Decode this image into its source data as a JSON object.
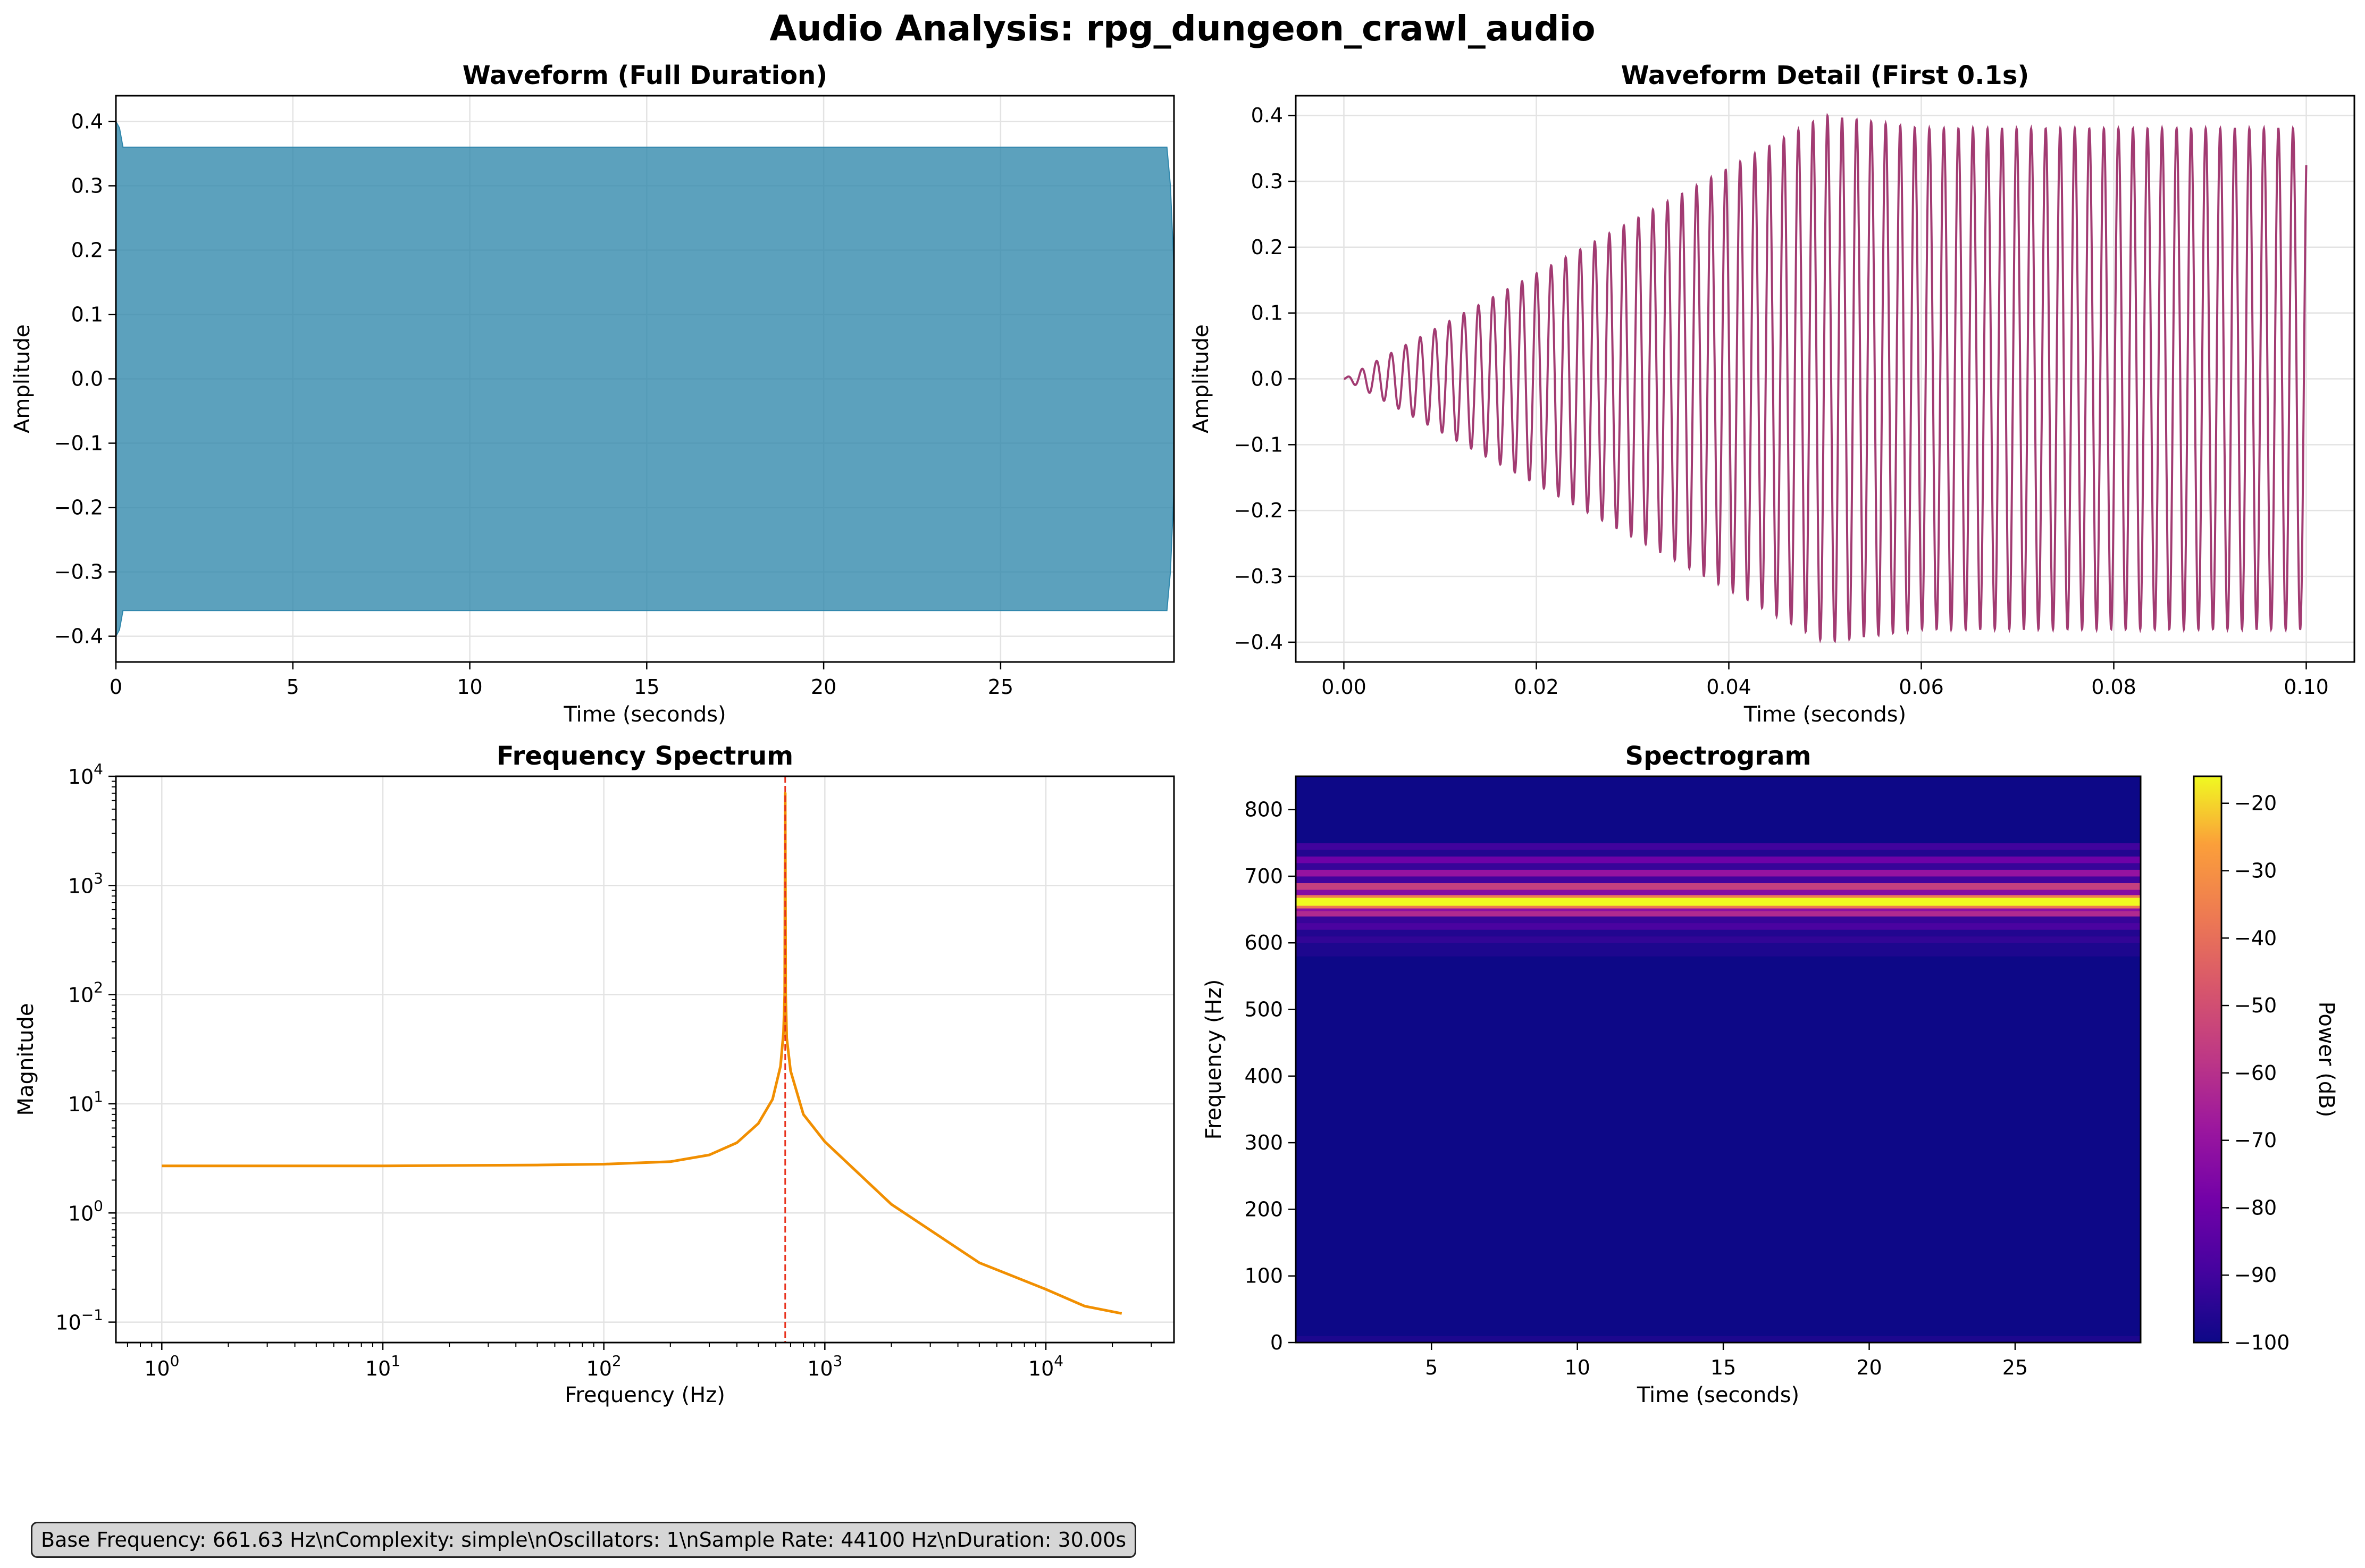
{
  "figure": {
    "title": "Audio Analysis: rpg_dungeon_crawl_audio",
    "info_text": "Base Frequency: 661.63 Hz\\nComplexity: simple\\nOscillators: 1\\nSample Rate: 44100 Hz\\nDuration: 30.00s"
  },
  "chart_data": [
    {
      "type": "area",
      "title": "Waveform (Full Duration)",
      "xlabel": "Time (seconds)",
      "ylabel": "Amplitude",
      "xlim": [
        0,
        29.9
      ],
      "ylim": [
        -0.44,
        0.44
      ],
      "xticks": [
        0,
        5,
        10,
        15,
        20,
        25
      ],
      "xtick_labels": [
        "0",
        "5",
        "10",
        "15",
        "20",
        "25"
      ],
      "yticks": [
        -0.4,
        -0.3,
        -0.2,
        -0.1,
        0.0,
        0.1,
        0.2,
        0.3,
        0.4
      ],
      "ytick_labels": [
        "−0.4",
        "−0.3",
        "−0.2",
        "−0.1",
        "0.0",
        "0.1",
        "0.2",
        "0.3",
        "0.4"
      ],
      "envelope": [
        [
          0,
          0.4
        ],
        [
          0.1,
          0.39
        ],
        [
          0.2,
          0.36
        ],
        [
          29.7,
          0.36
        ],
        [
          29.8,
          0.3
        ],
        [
          29.9,
          0.17
        ]
      ],
      "color": "#2e86ab",
      "grid": true
    },
    {
      "type": "line",
      "title": "Waveform Detail (First 0.1s)",
      "xlabel": "Time (seconds)",
      "ylabel": "Amplitude",
      "xlim": [
        -0.005,
        0.105
      ],
      "ylim": [
        -0.43,
        0.43
      ],
      "xticks": [
        0,
        0.02,
        0.04,
        0.06,
        0.08,
        0.1
      ],
      "xtick_labels": [
        "0.00",
        "0.02",
        "0.04",
        "0.06",
        "0.08",
        "0.10"
      ],
      "yticks": [
        -0.4,
        -0.3,
        -0.2,
        -0.1,
        0.0,
        0.1,
        0.2,
        0.3,
        0.4
      ],
      "ytick_labels": [
        "−0.4",
        "−0.3",
        "−0.2",
        "−0.1",
        "0.0",
        "0.1",
        "0.2",
        "0.3",
        "0.4"
      ],
      "signal": {
        "frequency_hz": 661.63,
        "attack_end_s": 0.05,
        "peak_amplitude": 0.4,
        "sustain_amplitude": 0.38,
        "decay_end_s": 0.06,
        "duration_s": 0.1
      },
      "color": "#a23b72",
      "grid": true
    },
    {
      "type": "line",
      "title": "Frequency Spectrum",
      "xlabel": "Frequency (Hz)",
      "ylabel": "Magnitude",
      "xscale": "log",
      "yscale": "log",
      "xlim": [
        0.62,
        38000
      ],
      "ylim": [
        0.065,
        10000
      ],
      "xticks": [
        1,
        10,
        100,
        1000,
        10000
      ],
      "xtick_labels": [
        [
          "10",
          "0"
        ],
        [
          "10",
          "1"
        ],
        [
          "10",
          "2"
        ],
        [
          "10",
          "3"
        ],
        [
          "10",
          "4"
        ]
      ],
      "yticks": [
        0.1,
        1,
        10,
        100,
        1000,
        10000
      ],
      "ytick_labels": [
        [
          "10",
          "−1"
        ],
        [
          "10",
          "0"
        ],
        [
          "10",
          "1"
        ],
        [
          "10",
          "2"
        ],
        [
          "10",
          "3"
        ],
        [
          "10",
          "4"
        ]
      ],
      "series_points": [
        [
          1,
          2.7
        ],
        [
          10,
          2.7
        ],
        [
          50,
          2.75
        ],
        [
          100,
          2.8
        ],
        [
          200,
          2.95
        ],
        [
          300,
          3.4
        ],
        [
          400,
          4.4
        ],
        [
          500,
          6.6
        ],
        [
          580,
          11
        ],
        [
          630,
          22
        ],
        [
          650,
          45
        ],
        [
          658,
          100
        ],
        [
          661.63,
          7000
        ],
        [
          665,
          100
        ],
        [
          672,
          40
        ],
        [
          700,
          20
        ],
        [
          800,
          8
        ],
        [
          1000,
          4.5
        ],
        [
          2000,
          1.2
        ],
        [
          5000,
          0.35
        ],
        [
          10000,
          0.2
        ],
        [
          15000,
          0.14
        ],
        [
          22050,
          0.12
        ]
      ],
      "peak_frequency_hz": 661.63,
      "line_color": "#f18f01",
      "marker_color": "#e8321e",
      "grid": true
    },
    {
      "type": "heatmap",
      "title": "Spectrogram",
      "xlabel": "Time (seconds)",
      "ylabel": "Frequency (Hz)",
      "xlim": [
        0.35,
        29.3
      ],
      "ylim": [
        0,
        850
      ],
      "xticks": [
        5,
        10,
        15,
        20,
        25
      ],
      "xtick_labels": [
        "5",
        "10",
        "15",
        "20",
        "25"
      ],
      "yticks": [
        0,
        100,
        200,
        300,
        400,
        500,
        600,
        700,
        800
      ],
      "ytick_labels": [
        "0",
        "100",
        "200",
        "300",
        "400",
        "500",
        "600",
        "700",
        "800"
      ],
      "colorbar": {
        "label": "Power (dB)",
        "min": -100,
        "max": -16,
        "ticks": [
          -100,
          -90,
          -80,
          -70,
          -60,
          -50,
          -40,
          -30,
          -20
        ],
        "tick_labels": [
          "−100",
          "−90",
          "−80",
          "−70",
          "−60",
          "−50",
          "−40",
          "−30",
          "−20"
        ],
        "colormap": "plasma"
      },
      "frequency_bands_db": [
        [
          0,
          10,
          -97
        ],
        [
          10,
          580,
          -100
        ],
        [
          580,
          600,
          -97
        ],
        [
          600,
          610,
          -93
        ],
        [
          610,
          620,
          -96
        ],
        [
          620,
          630,
          -88
        ],
        [
          630,
          640,
          -92
        ],
        [
          640,
          648,
          -62
        ],
        [
          648,
          652,
          -72
        ],
        [
          652,
          656,
          -38
        ],
        [
          656,
          668,
          -16
        ],
        [
          668,
          672,
          -36
        ],
        [
          672,
          680,
          -74
        ],
        [
          680,
          690,
          -55
        ],
        [
          690,
          700,
          -90
        ],
        [
          700,
          710,
          -70
        ],
        [
          710,
          720,
          -92
        ],
        [
          720,
          730,
          -80
        ],
        [
          730,
          740,
          -96
        ],
        [
          740,
          750,
          -90
        ],
        [
          750,
          850,
          -100
        ]
      ],
      "grid": false
    }
  ]
}
